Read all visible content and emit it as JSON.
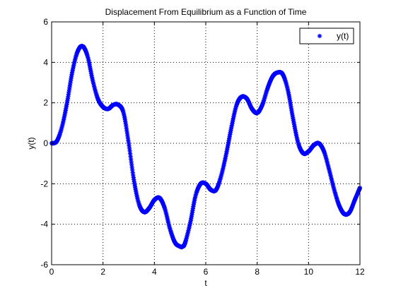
{
  "chart_data": {
    "type": "scatter",
    "title": "Displacement From Equilibrium as a Function of Time",
    "xlabel": "t",
    "ylabel": "y(t)",
    "xlim": [
      0,
      12
    ],
    "ylim": [
      -6,
      6
    ],
    "x_ticks": [
      "0",
      "2",
      "4",
      "6",
      "8",
      "10",
      "12"
    ],
    "y_ticks": [
      "6",
      "4",
      "2",
      "0",
      "-2",
      "-4",
      "-6"
    ],
    "grid": true,
    "grid_style": "dotted",
    "legend": {
      "position": "top-right",
      "entries": [
        "y(t)"
      ]
    },
    "marker": "asterisk",
    "colors": {
      "series": "#0000ff",
      "axes": "#000000",
      "background": "#ffffff"
    },
    "series": [
      {
        "name": "y(t)",
        "x": [
          0,
          0.2,
          0.4,
          0.6,
          0.8,
          1.0,
          1.2,
          1.4,
          1.6,
          1.8,
          2.0,
          2.2,
          2.4,
          2.6,
          2.8,
          3.0,
          3.2,
          3.4,
          3.6,
          3.8,
          4.0,
          4.2,
          4.4,
          4.6,
          4.8,
          5.0,
          5.1,
          5.2,
          5.4,
          5.6,
          5.8,
          6.0,
          6.2,
          6.4,
          6.6,
          6.8,
          7.0,
          7.2,
          7.4,
          7.6,
          7.8,
          8.0,
          8.2,
          8.4,
          8.6,
          8.8,
          9.0,
          9.2,
          9.4,
          9.6,
          9.8,
          10.0,
          10.2,
          10.4,
          10.6,
          10.8,
          11.0,
          11.2,
          11.4,
          11.6,
          11.8,
          12.0
        ],
        "y": [
          0.0,
          0.1,
          0.8,
          2.0,
          3.5,
          4.5,
          4.8,
          4.3,
          3.1,
          2.2,
          1.8,
          1.7,
          1.9,
          1.9,
          1.5,
          0.0,
          -1.8,
          -3.0,
          -3.4,
          -3.2,
          -2.8,
          -2.7,
          -3.2,
          -4.2,
          -4.9,
          -5.1,
          -5.1,
          -4.9,
          -3.9,
          -2.6,
          -2.0,
          -2.0,
          -2.3,
          -2.3,
          -1.6,
          -0.5,
          0.8,
          1.9,
          2.3,
          2.2,
          1.7,
          1.5,
          1.9,
          2.7,
          3.3,
          3.5,
          3.4,
          2.6,
          1.2,
          0.0,
          -0.5,
          -0.4,
          -0.1,
          0.0,
          -0.4,
          -1.3,
          -2.3,
          -3.1,
          -3.5,
          -3.4,
          -2.8,
          -2.2
        ]
      }
    ]
  }
}
